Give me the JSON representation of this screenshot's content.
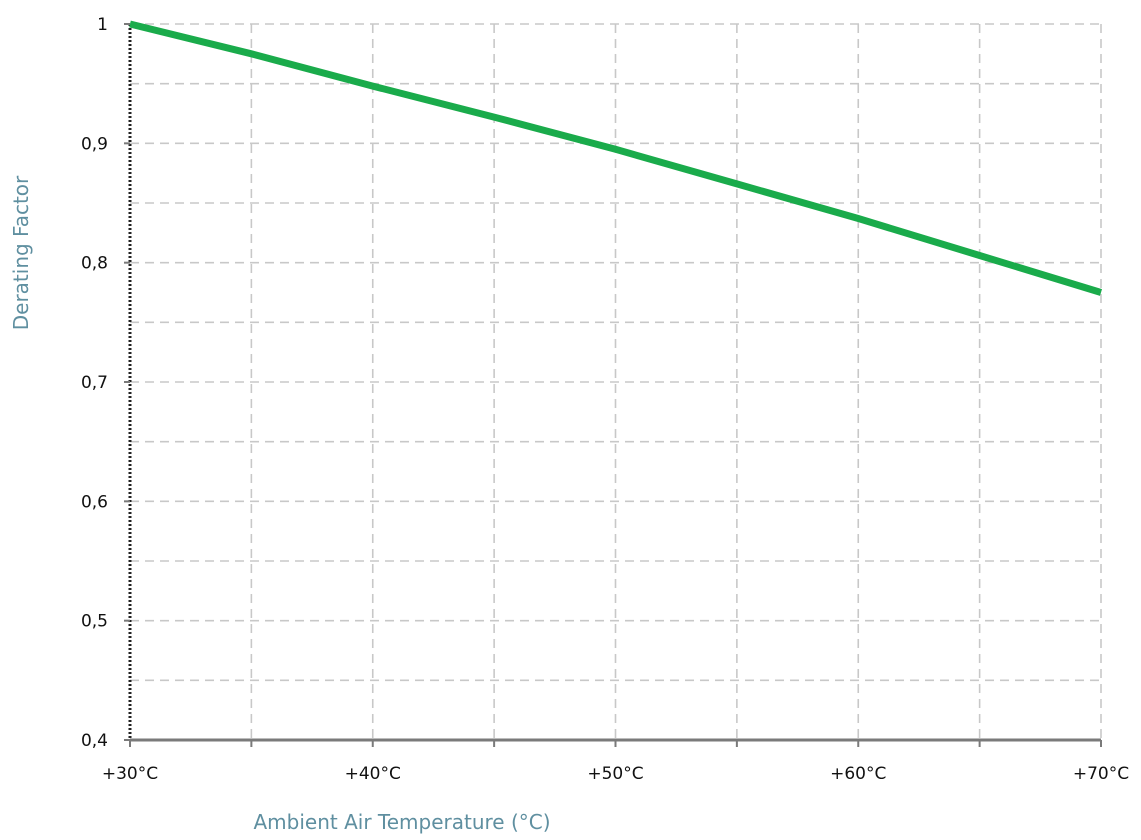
{
  "chart_data": {
    "type": "line",
    "title": "",
    "xlabel": "Ambient Air Temperature (°C)",
    "ylabel": "Derating Factor",
    "x_ticks": [
      {
        "value": 30,
        "label": "+30°C"
      },
      {
        "value": 40,
        "label": "+40°C"
      },
      {
        "value": 50,
        "label": "+50°C"
      },
      {
        "value": 60,
        "label": "+60°C"
      },
      {
        "value": 70,
        "label": "+70°C"
      }
    ],
    "y_ticks": [
      {
        "value": 0.4,
        "label": "0,4"
      },
      {
        "value": 0.5,
        "label": "0,5"
      },
      {
        "value": 0.6,
        "label": "0,6"
      },
      {
        "value": 0.7,
        "label": "0,7"
      },
      {
        "value": 0.8,
        "label": "0,8"
      },
      {
        "value": 0.9,
        "label": "0,9"
      },
      {
        "value": 1.0,
        "label": "1"
      }
    ],
    "xlim": [
      30,
      70
    ],
    "ylim": [
      0.4,
      1.0
    ],
    "grid": true,
    "x_grid_step": 5,
    "y_grid_step": 0.05,
    "series": [
      {
        "color": "#1aab4b",
        "points": [
          {
            "x": 30,
            "y": 1.0
          },
          {
            "x": 35,
            "y": 0.975
          },
          {
            "x": 40,
            "y": 0.948
          },
          {
            "x": 45,
            "y": 0.922
          },
          {
            "x": 50,
            "y": 0.895
          },
          {
            "x": 55,
            "y": 0.866
          },
          {
            "x": 60,
            "y": 0.837
          },
          {
            "x": 65,
            "y": 0.806
          },
          {
            "x": 70,
            "y": 0.775
          }
        ]
      }
    ],
    "colors": {
      "grid": "#c8c8c8",
      "axis": "#7a7a7a",
      "y_axis_dotted": "#222222",
      "axis_title": "#5f8fa0"
    }
  }
}
